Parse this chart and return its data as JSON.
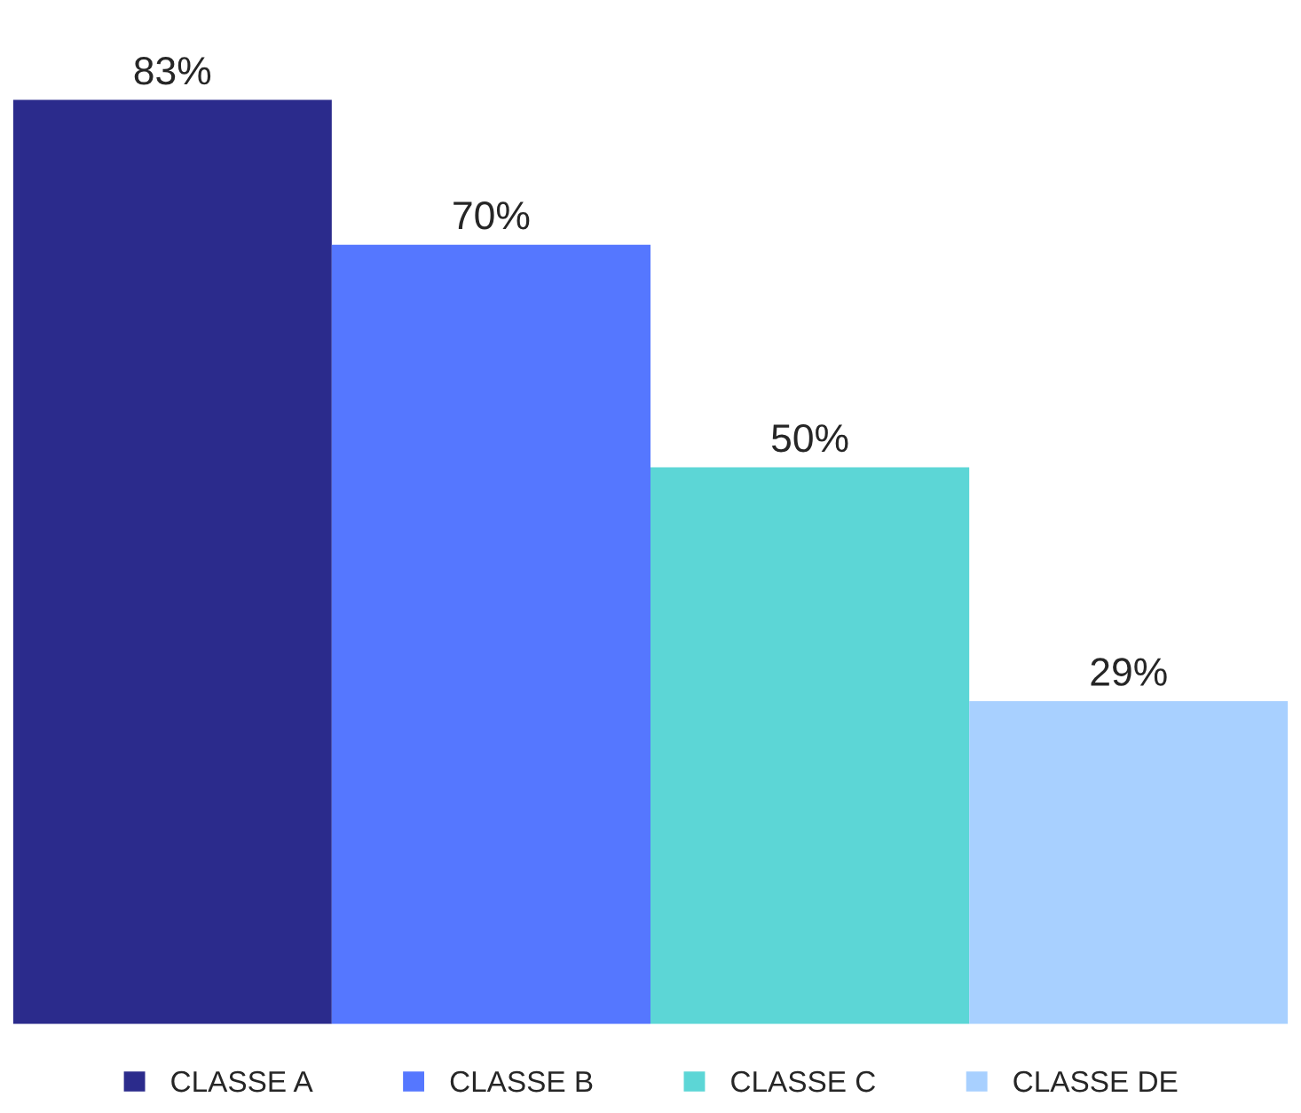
{
  "chart_data": {
    "type": "bar",
    "categories": [
      null
    ],
    "series": [
      {
        "name": "CLASSE A",
        "color": "#2b2b8c",
        "values": [
          83
        ],
        "value_labels": [
          "83%"
        ]
      },
      {
        "name": "CLASSE B",
        "color": "#5577ff",
        "values": [
          70
        ],
        "value_labels": [
          "70%"
        ]
      },
      {
        "name": "CLASSE C",
        "color": "#5cd6d6",
        "values": [
          50
        ],
        "value_labels": [
          "50%"
        ]
      },
      {
        "name": "CLASSE DE",
        "color": "#a8d0ff",
        "values": [
          29
        ],
        "value_labels": [
          "29%"
        ]
      }
    ],
    "grid": false,
    "legend": "bottom"
  }
}
